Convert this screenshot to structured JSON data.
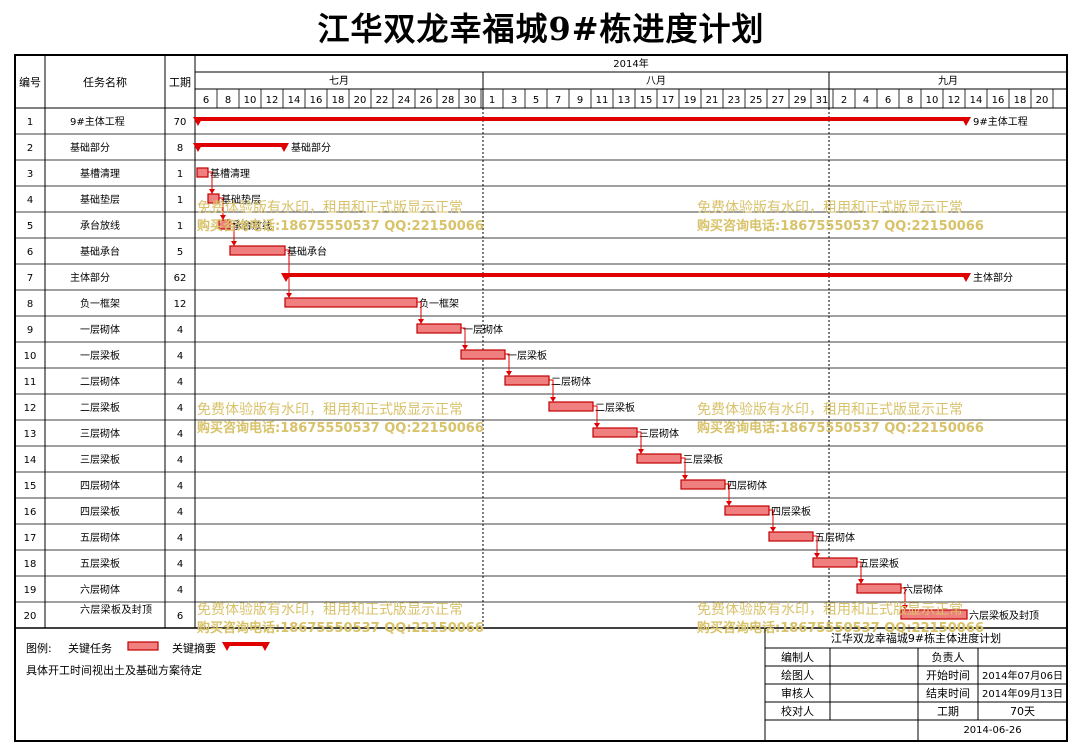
{
  "title": "江华双龙幸福城9#栋进度计划",
  "header": {
    "col_no": "编号",
    "col_name": "任务名称",
    "col_duration": "工期",
    "year": "2014年",
    "months": [
      "七月",
      "八月",
      "九月"
    ],
    "days": [
      "6",
      "8",
      "10",
      "12",
      "14",
      "16",
      "18",
      "20",
      "22",
      "24",
      "26",
      "28",
      "30",
      "1",
      "3",
      "5",
      "7",
      "9",
      "11",
      "13",
      "15",
      "17",
      "19",
      "21",
      "23",
      "25",
      "27",
      "29",
      "31",
      "2",
      "4",
      "6",
      "8",
      "10",
      "12",
      "14",
      "16",
      "18",
      "20"
    ]
  },
  "tasks": [
    {
      "no": "1",
      "name": "9#主体工程",
      "dur": "70",
      "start": "2014-07-06",
      "end": "2014-09-13",
      "type": "summary",
      "label": "9#主体工程"
    },
    {
      "no": "2",
      "name": "基础部分",
      "dur": "8",
      "start": "2014-07-06",
      "end": "2014-07-13",
      "type": "summary",
      "label": "基础部分"
    },
    {
      "no": "3",
      "name": "基槽清理",
      "dur": "1",
      "start": "2014-07-06",
      "end": "2014-07-06",
      "type": "task",
      "label": "基槽清理"
    },
    {
      "no": "4",
      "name": "基础垫层",
      "dur": "1",
      "start": "2014-07-07",
      "end": "2014-07-07",
      "type": "task",
      "label": "基础垫层"
    },
    {
      "no": "5",
      "name": "承台放线",
      "dur": "1",
      "start": "2014-07-08",
      "end": "2014-07-08",
      "type": "task",
      "label": "承台放线"
    },
    {
      "no": "6",
      "name": "基础承台",
      "dur": "5",
      "start": "2014-07-09",
      "end": "2014-07-13",
      "type": "task",
      "label": "基础承台"
    },
    {
      "no": "7",
      "name": "主体部分",
      "dur": "62",
      "start": "2014-07-14",
      "end": "2014-09-13",
      "type": "summary",
      "label": "主体部分"
    },
    {
      "no": "8",
      "name": "负一框架",
      "dur": "12",
      "start": "2014-07-14",
      "end": "2014-07-25",
      "type": "task",
      "label": "负一框架"
    },
    {
      "no": "9",
      "name": "一层砌体",
      "dur": "4",
      "start": "2014-07-26",
      "end": "2014-07-29",
      "type": "task",
      "label": "一层砌体"
    },
    {
      "no": "10",
      "name": "一层梁板",
      "dur": "4",
      "start": "2014-07-30",
      "end": "2014-08-02",
      "type": "task",
      "label": "一层梁板"
    },
    {
      "no": "11",
      "name": "二层砌体",
      "dur": "4",
      "start": "2014-08-03",
      "end": "2014-08-06",
      "type": "task",
      "label": "二层砌体"
    },
    {
      "no": "12",
      "name": "二层梁板",
      "dur": "4",
      "start": "2014-08-07",
      "end": "2014-08-10",
      "type": "task",
      "label": "二层梁板"
    },
    {
      "no": "13",
      "name": "三层砌体",
      "dur": "4",
      "start": "2014-08-11",
      "end": "2014-08-14",
      "type": "task",
      "label": "三层砌体"
    },
    {
      "no": "14",
      "name": "三层梁板",
      "dur": "4",
      "start": "2014-08-15",
      "end": "2014-08-18",
      "type": "task",
      "label": "三层梁板"
    },
    {
      "no": "15",
      "name": "四层砌体",
      "dur": "4",
      "start": "2014-08-19",
      "end": "2014-08-22",
      "type": "task",
      "label": "四层砌体"
    },
    {
      "no": "16",
      "name": "四层梁板",
      "dur": "4",
      "start": "2014-08-23",
      "end": "2014-08-26",
      "type": "task",
      "label": "四层梁板"
    },
    {
      "no": "17",
      "name": "五层砌体",
      "dur": "4",
      "start": "2014-08-27",
      "end": "2014-08-30",
      "type": "task",
      "label": "五层砌体"
    },
    {
      "no": "18",
      "name": "五层梁板",
      "dur": "4",
      "start": "2014-08-31",
      "end": "2014-09-03",
      "type": "task",
      "label": "五层梁板"
    },
    {
      "no": "19",
      "name": "六层砌体",
      "dur": "4",
      "start": "2014-09-04",
      "end": "2014-09-07",
      "type": "task",
      "label": "六层砌体"
    },
    {
      "no": "20",
      "name": "六层梁板及封顶",
      "dur": "6",
      "start": "2014-09-08",
      "end": "2014-09-13",
      "type": "task",
      "label": "六层梁板及封顶"
    }
  ],
  "watermark": {
    "line1": "免费体验版有水印，租用和正式版显示正常",
    "line2": "购买咨询电话:18675550537 QQ:22150066"
  },
  "legend": {
    "label": "图例:",
    "key_task": "关键任务",
    "key_summary": "关键摘要",
    "note": "具体开工时间视出土及基础方案待定"
  },
  "titleblock": {
    "title": "江华双龙幸福城9#栋主体进度计划",
    "prepared_by": "编制人",
    "responsible": "负责人",
    "drawn_by": "绘图人",
    "reviewed_by": "审核人",
    "checked_by": "校对人",
    "start_label": "开始时间",
    "start_value": "2014年07月06日",
    "end_label": "结束时间",
    "end_value": "2014年09月13日",
    "duration_label": "工期",
    "duration_value": "70天",
    "date": "2014-06-26"
  },
  "colors": {
    "critical": "#e00000",
    "bar_fill": "#f08080",
    "bar_border": "#c00000",
    "watermark": "#d8c26a"
  }
}
